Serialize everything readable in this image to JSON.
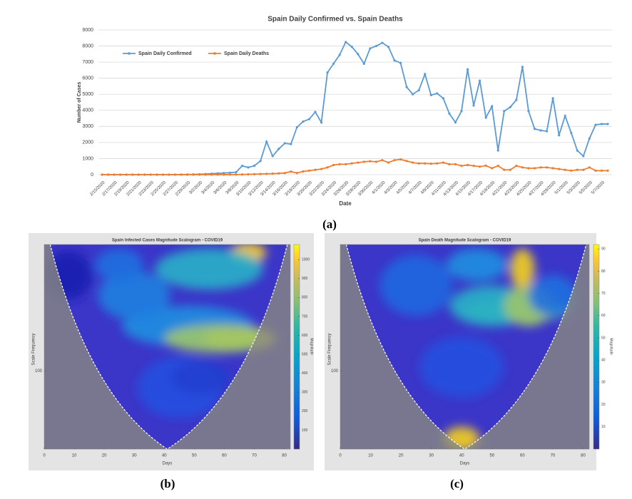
{
  "chart_data": [
    {
      "type": "line",
      "title": "Spain Daily Confirmed vs. Spain Deaths",
      "xlabel": "Date",
      "ylabel": "Number of Cases",
      "caption": "(a)",
      "categories": [
        "2/15/2020",
        null,
        "2/17/2020",
        null,
        "2/19/2020",
        null,
        "2/21/2020",
        null,
        "2/23/2020",
        null,
        "2/25/2020",
        null,
        "2/27/2020",
        null,
        "2/29/2020",
        null,
        "3/2/2020",
        null,
        "3/4/2020",
        null,
        "3/6/2020",
        null,
        "3/8/2020",
        null,
        "3/10/2020",
        null,
        "3/12/2020",
        null,
        "3/14/2020",
        null,
        "3/16/2020",
        null,
        "3/18/2020",
        null,
        "3/20/2020",
        null,
        "3/22/2020",
        null,
        "3/24/2020",
        null,
        "3/26/2020",
        null,
        "3/28/2020",
        null,
        "3/30/2020",
        null,
        "4/1/2020",
        null,
        "4/3/2020",
        null,
        "4/5/2020",
        null,
        "4/7/2020",
        null,
        "4/9/2020",
        null,
        "4/11/2020",
        null,
        "4/13/2020",
        null,
        "4/15/2020",
        null,
        "4/17/2020",
        null,
        "4/19/2020",
        null,
        "4/21/2020",
        null,
        "4/23/2020",
        null,
        "4/25/2020",
        null,
        "4/27/2020",
        null,
        "4/29/2020",
        null,
        "5/1/2020",
        null,
        "5/3/2020",
        null,
        "5/5/2020",
        null,
        "5/7/2020",
        null
      ],
      "series": [
        {
          "name": "Spain Daily Confirmed",
          "color": "#5b9bd5",
          "values": [
            0,
            0,
            0,
            0,
            0,
            0,
            0,
            0,
            0,
            0,
            0,
            0,
            2,
            5,
            10,
            15,
            25,
            40,
            60,
            80,
            100,
            120,
            150,
            550,
            450,
            550,
            850,
            2050,
            1150,
            1600,
            1950,
            1900,
            2950,
            3300,
            3450,
            3900,
            3250,
            6350,
            6900,
            7450,
            8250,
            7950,
            7500,
            6900,
            7850,
            8000,
            8200,
            7950,
            7100,
            6950,
            5450,
            5000,
            5250,
            6250,
            4950,
            5050,
            4750,
            3800,
            3250,
            3950,
            6550,
            4300,
            5850,
            3550,
            4250,
            1500,
            3950,
            4200,
            4650,
            6700,
            3950,
            2850,
            2750,
            2700,
            4750,
            2450,
            3650,
            2600,
            1500,
            1150,
            2250,
            3100,
            3150,
            3150
          ]
        },
        {
          "name": "Spain Daily Deaths",
          "color": "#ed7d31",
          "values": [
            0,
            0,
            0,
            0,
            0,
            0,
            0,
            0,
            0,
            0,
            0,
            0,
            0,
            0,
            0,
            0,
            0,
            0,
            0,
            1,
            2,
            3,
            5,
            10,
            20,
            30,
            40,
            50,
            60,
            80,
            100,
            190,
            100,
            200,
            250,
            300,
            350,
            450,
            600,
            650,
            650,
            700,
            750,
            800,
            830,
            800,
            900,
            750,
            900,
            950,
            850,
            750,
            700,
            700,
            680,
            700,
            750,
            650,
            650,
            550,
            600,
            550,
            500,
            560,
            400,
            550,
            300,
            300,
            550,
            450,
            400,
            400,
            450,
            450,
            400,
            350,
            300,
            250,
            300,
            300,
            450,
            250,
            250,
            250
          ]
        }
      ],
      "ylim": [
        0,
        9000
      ],
      "yticks": [
        0,
        1000,
        2000,
        3000,
        4000,
        5000,
        6000,
        7000,
        8000,
        9000
      ],
      "grid": true,
      "legend": "upper-left"
    },
    {
      "type": "scalogram",
      "title": "Spain Infected Cases Magnitude Scalogram - COVID19",
      "xlabel": "Days",
      "ylabel": "Scale Frequency",
      "colorbar_label": "Magnitude",
      "caption": "(b)",
      "xlim": [
        0,
        82
      ],
      "xticks": [
        0,
        10,
        20,
        30,
        40,
        50,
        60,
        70,
        80
      ],
      "ylim": [
        30,
        700
      ],
      "yticks": [
        100
      ],
      "yscale": "log",
      "clim": [
        0,
        1080
      ],
      "cticks": [
        100,
        200,
        300,
        400,
        500,
        600,
        700,
        800,
        900,
        1000
      ]
    },
    {
      "type": "scalogram",
      "title": "Spain Death Magnitude Scalogram - COVID19",
      "xlabel": "Days",
      "ylabel": "Scale Frequency",
      "colorbar_label": "Magnitude",
      "caption": "(c)",
      "xlim": [
        0,
        82
      ],
      "xticks": [
        0,
        10,
        20,
        30,
        40,
        50,
        60,
        70,
        80
      ],
      "ylim": [
        30,
        700
      ],
      "yticks": [
        100
      ],
      "yscale": "log",
      "clim": [
        0,
        92
      ],
      "cticks": [
        10,
        20,
        30,
        40,
        50,
        60,
        70,
        80,
        90
      ]
    }
  ]
}
